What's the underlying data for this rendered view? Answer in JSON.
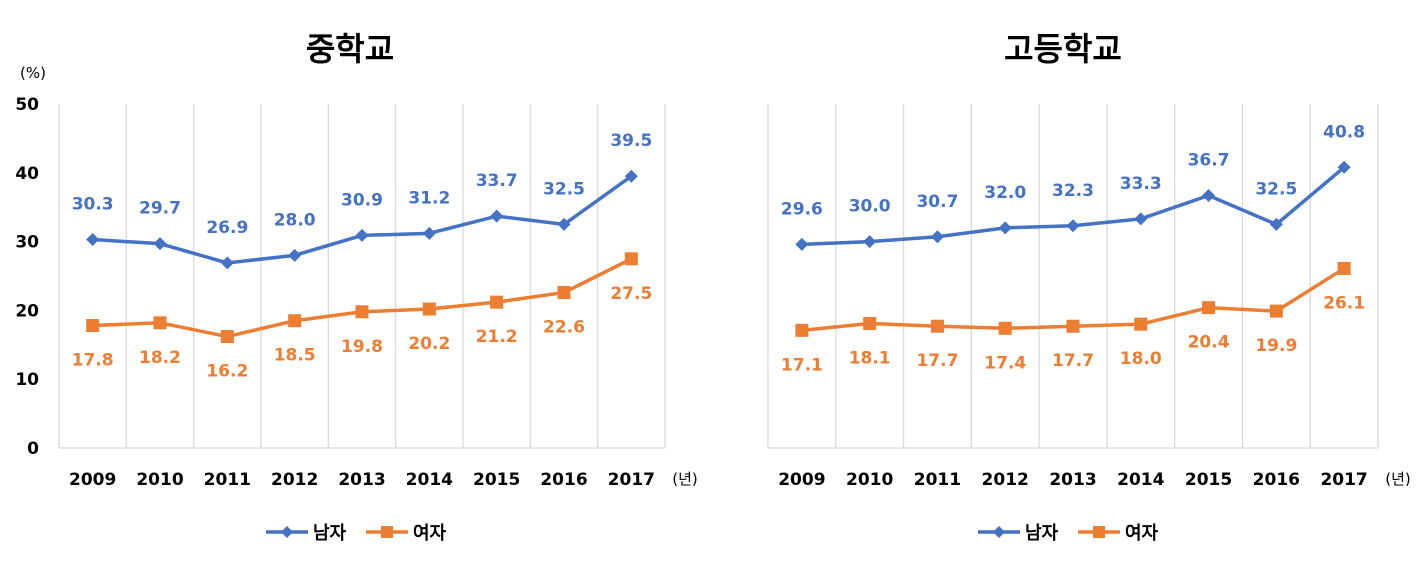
{
  "colors": {
    "male": "#4472C4",
    "female": "#ED7D31",
    "grid": "#D9D9D9"
  },
  "chart_data": [
    {
      "type": "line",
      "title": "중학교",
      "yunit": "(%)",
      "xunit": "(년)",
      "ylim": [
        0,
        50
      ],
      "yticks": [
        "0",
        "10",
        "20",
        "30",
        "40",
        "50"
      ],
      "grid": true,
      "legend_position": "bottom-center",
      "categories": [
        "2009",
        "2010",
        "2011",
        "2012",
        "2013",
        "2014",
        "2015",
        "2016",
        "2017"
      ],
      "series": [
        {
          "name": "남자",
          "marker": "diamond",
          "values": [
            30.3,
            29.7,
            26.9,
            28.0,
            30.9,
            31.2,
            33.7,
            32.5,
            39.5
          ],
          "labels": [
            "30.3",
            "29.7",
            "26.9",
            "28.0",
            "30.9",
            "31.2",
            "33.7",
            "32.5",
            "39.5"
          ]
        },
        {
          "name": "여자",
          "marker": "square",
          "values": [
            17.8,
            18.2,
            16.2,
            18.5,
            19.8,
            20.2,
            21.2,
            22.6,
            27.5
          ],
          "labels": [
            "17.8",
            "18.2",
            "16.2",
            "18.5",
            "19.8",
            "20.2",
            "21.2",
            "22.6",
            "27.5"
          ]
        }
      ]
    },
    {
      "type": "line",
      "title": "고등학교",
      "xunit": "(년)",
      "ylim": [
        0,
        50
      ],
      "grid": true,
      "legend_position": "bottom-center",
      "categories": [
        "2009",
        "2010",
        "2011",
        "2012",
        "2013",
        "2014",
        "2015",
        "2016",
        "2017"
      ],
      "series": [
        {
          "name": "남자",
          "marker": "diamond",
          "values": [
            29.6,
            30.0,
            30.7,
            32.0,
            32.3,
            33.3,
            36.7,
            32.5,
            40.8
          ],
          "labels": [
            "29.6",
            "30.0",
            "30.7",
            "32.0",
            "32.3",
            "33.3",
            "36.7",
            "32.5",
            "40.8"
          ]
        },
        {
          "name": "여자",
          "marker": "square",
          "values": [
            17.1,
            18.1,
            17.7,
            17.4,
            17.7,
            18.0,
            20.4,
            19.9,
            26.1
          ],
          "labels": [
            "17.1",
            "18.1",
            "17.7",
            "17.4",
            "17.7",
            "18.0",
            "20.4",
            "19.9",
            "26.1"
          ]
        }
      ]
    }
  ]
}
